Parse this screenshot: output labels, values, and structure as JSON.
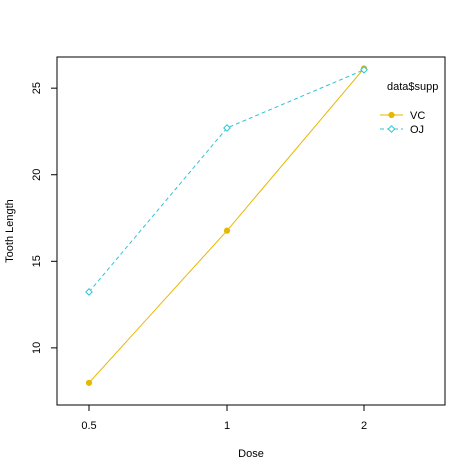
{
  "chart_data": {
    "type": "line",
    "title": "",
    "xlabel": "Dose",
    "ylabel": "Tooth Length",
    "x": [
      "0.5",
      "1",
      "2"
    ],
    "ylim": [
      6.7,
      26.8
    ],
    "yticks": [
      10,
      15,
      20,
      25
    ],
    "grid": false,
    "legend": {
      "title": "data$supp",
      "position": "top-right"
    },
    "series": [
      {
        "name": "VC",
        "values": [
          7.98,
          16.77,
          26.14
        ],
        "color": "#E7B800",
        "line_style": "solid",
        "marker": "filled-circle"
      },
      {
        "name": "OJ",
        "values": [
          13.23,
          22.7,
          26.06
        ],
        "color": "#2EC4D6",
        "line_style": "dashed",
        "marker": "open-diamond"
      }
    ]
  }
}
